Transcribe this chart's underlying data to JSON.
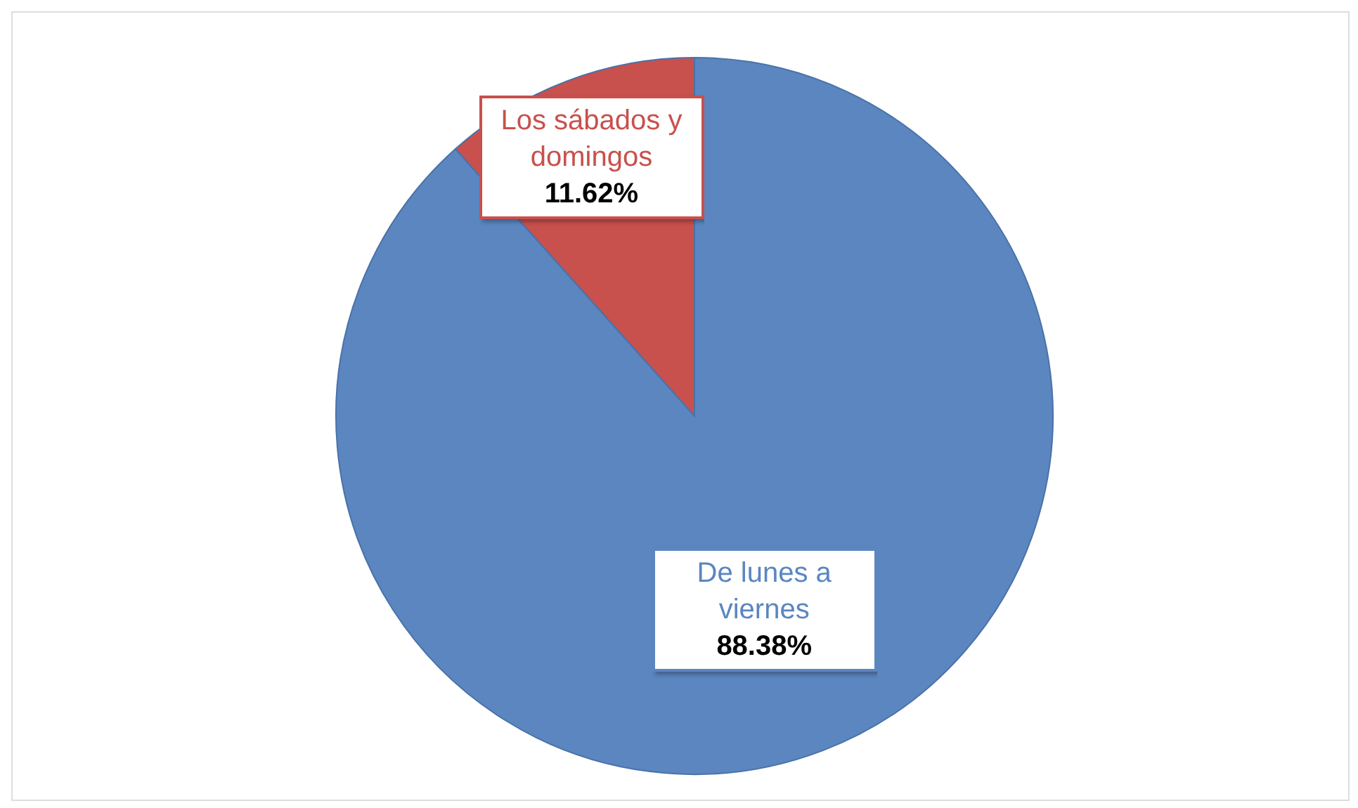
{
  "chart_data": {
    "type": "pie",
    "categories": [
      "De lunes a viernes",
      "Los sábados y domingos"
    ],
    "values": [
      88.38,
      11.62
    ],
    "colors": [
      "#5b86c0",
      "#c8504d"
    ],
    "value_labels": [
      "88.38%",
      "11.62%"
    ]
  }
}
